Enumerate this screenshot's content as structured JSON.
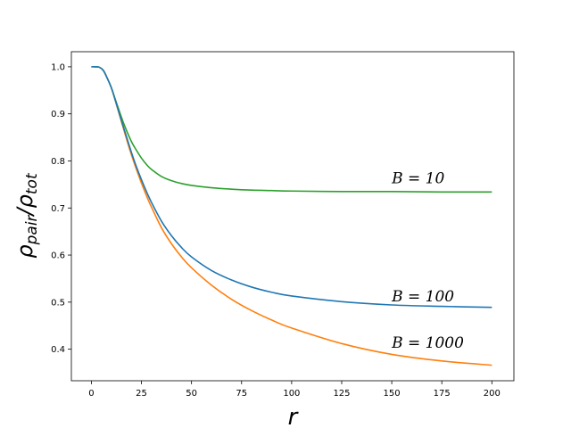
{
  "chart_data": {
    "type": "line",
    "title": "",
    "xlabel": "r",
    "ylabel": "ρpair/ρtot",
    "xlim": [
      -10,
      211
    ],
    "ylim": [
      0.333,
      1.032
    ],
    "xticks": [
      0,
      25,
      50,
      75,
      100,
      125,
      150,
      175,
      200
    ],
    "yticks": [
      0.4,
      0.5,
      0.6,
      0.7,
      0.8,
      0.9,
      1.0
    ],
    "grid": false,
    "legend": "none",
    "series": [
      {
        "name": "B = 10",
        "color": "#2ca02c",
        "x": [
          0,
          2,
          4,
          6,
          8,
          10,
          12,
          14,
          16,
          18,
          20,
          22,
          25,
          28,
          30,
          35,
          40,
          45,
          50,
          60,
          70,
          80,
          90,
          100,
          125,
          150,
          175,
          200
        ],
        "y": [
          1.0,
          1.0,
          0.999,
          0.992,
          0.975,
          0.955,
          0.93,
          0.905,
          0.881,
          0.86,
          0.841,
          0.826,
          0.806,
          0.79,
          0.782,
          0.767,
          0.758,
          0.752,
          0.748,
          0.743,
          0.74,
          0.738,
          0.737,
          0.736,
          0.735,
          0.735,
          0.734,
          0.734
        ]
      },
      {
        "name": "B = 100",
        "color": "#1f77b4",
        "x": [
          0,
          2,
          4,
          6,
          8,
          10,
          12,
          14,
          16,
          18,
          20,
          22,
          25,
          28,
          30,
          35,
          40,
          45,
          50,
          60,
          70,
          80,
          90,
          100,
          125,
          150,
          175,
          200
        ],
        "y": [
          1.0,
          1.0,
          0.999,
          0.992,
          0.975,
          0.955,
          0.928,
          0.9,
          0.872,
          0.845,
          0.818,
          0.793,
          0.76,
          0.73,
          0.712,
          0.672,
          0.641,
          0.616,
          0.596,
          0.567,
          0.547,
          0.532,
          0.521,
          0.513,
          0.501,
          0.494,
          0.491,
          0.489
        ]
      },
      {
        "name": "B = 1000",
        "color": "#ff7f0e",
        "x": [
          0,
          2,
          4,
          6,
          8,
          10,
          12,
          14,
          16,
          18,
          20,
          22,
          25,
          28,
          30,
          35,
          40,
          45,
          50,
          60,
          70,
          80,
          90,
          100,
          125,
          150,
          175,
          200
        ],
        "y": [
          1.0,
          1.0,
          0.999,
          0.992,
          0.975,
          0.955,
          0.927,
          0.898,
          0.869,
          0.84,
          0.813,
          0.788,
          0.753,
          0.721,
          0.702,
          0.658,
          0.624,
          0.596,
          0.573,
          0.536,
          0.506,
          0.482,
          0.462,
          0.445,
          0.412,
          0.389,
          0.375,
          0.366
        ]
      }
    ],
    "annotations": [
      {
        "text": "B = 10",
        "x": 150,
        "y": 0.753
      },
      {
        "text": "B = 100",
        "x": 150,
        "y": 0.502
      },
      {
        "text": "B = 1000",
        "x": 150,
        "y": 0.403
      }
    ]
  }
}
